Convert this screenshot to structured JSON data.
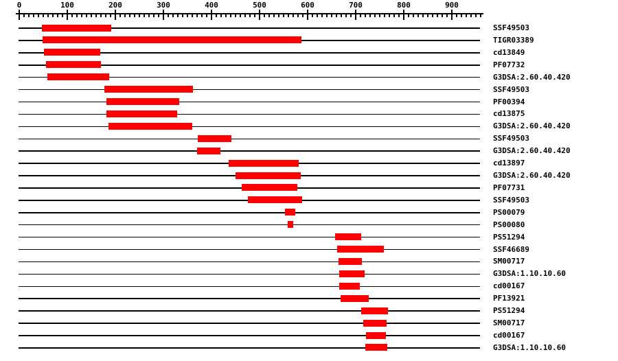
{
  "chart_data": {
    "type": "bar",
    "subtype": "horizontal-range",
    "title": "",
    "xlabel": "",
    "ylabel": "",
    "axis": {
      "position": "top",
      "min": 0,
      "max": 960,
      "minor_step": 10,
      "major_step": 100,
      "tick_labels": [
        "0",
        "100",
        "200",
        "300",
        "400",
        "500",
        "600",
        "700",
        "800",
        "900"
      ]
    },
    "grid": false,
    "legend": false,
    "colors": {
      "bar": "#ff0000",
      "line": "#000000",
      "background": "#ffffff",
      "text": "#000000"
    },
    "rows": [
      {
        "label": "SSF49503",
        "start": 47,
        "end": 192
      },
      {
        "label": "TIGR03389",
        "start": 48,
        "end": 587
      },
      {
        "label": "cd13849",
        "start": 51,
        "end": 169
      },
      {
        "label": "PF07732",
        "start": 55,
        "end": 170
      },
      {
        "label": "G3DSA:2.60.40.420",
        "start": 59,
        "end": 187
      },
      {
        "label": "SSF49503",
        "start": 177,
        "end": 362
      },
      {
        "label": "PF00394",
        "start": 181,
        "end": 333
      },
      {
        "label": "cd13875",
        "start": 181,
        "end": 328
      },
      {
        "label": "G3DSA:2.60.40.420",
        "start": 186,
        "end": 360
      },
      {
        "label": "SSF49503",
        "start": 372,
        "end": 442
      },
      {
        "label": "G3DSA:2.60.40.420",
        "start": 370,
        "end": 418
      },
      {
        "label": "cd13897",
        "start": 436,
        "end": 581
      },
      {
        "label": "G3DSA:2.60.40.420",
        "start": 450,
        "end": 585
      },
      {
        "label": "PF07731",
        "start": 463,
        "end": 578
      },
      {
        "label": "SSF49503",
        "start": 476,
        "end": 589
      },
      {
        "label": "PS00079",
        "start": 553,
        "end": 575
      },
      {
        "label": "PS00080",
        "start": 559,
        "end": 570
      },
      {
        "label": "PS51294",
        "start": 657,
        "end": 711
      },
      {
        "label": "SSF46689",
        "start": 661,
        "end": 758
      },
      {
        "label": "SM00717",
        "start": 664,
        "end": 713
      },
      {
        "label": "G3DSA:1.10.10.60",
        "start": 665,
        "end": 718
      },
      {
        "label": "cd00167",
        "start": 665,
        "end": 709
      },
      {
        "label": "PF13921",
        "start": 668,
        "end": 727
      },
      {
        "label": "PS51294",
        "start": 711,
        "end": 767
      },
      {
        "label": "SM00717",
        "start": 715,
        "end": 764
      },
      {
        "label": "cd00167",
        "start": 721,
        "end": 763
      },
      {
        "label": "G3DSA:1.10.10.60",
        "start": 720,
        "end": 765
      }
    ]
  }
}
